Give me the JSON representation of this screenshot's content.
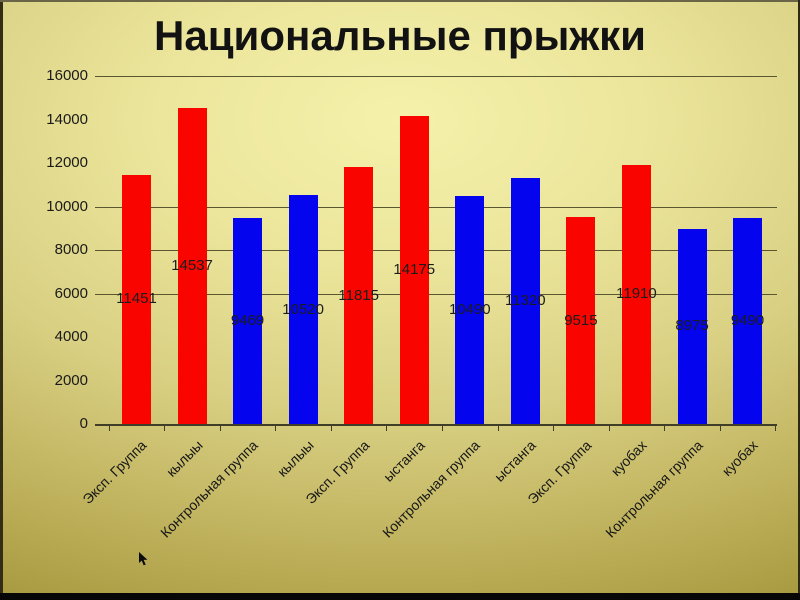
{
  "slide": {
    "title": "Национальные прыжки"
  },
  "colors": {
    "bar_red": "#fa0400",
    "bar_blue": "#0404ef",
    "background_center": "#f5f1ab",
    "background_edge": "#a3953a",
    "grid": "#5a5630",
    "axis": "#413e27",
    "text": "#161616"
  },
  "chart_data": {
    "type": "bar",
    "title": "Национальные прыжки",
    "categories": [
      "Эксп. Группа",
      "кылыы",
      "Контрольная группа",
      "кылыы",
      "Эксп. Группа",
      "ыстанга",
      "Контрольная группа",
      "ыстанга",
      "Эксп. Группа",
      "куобах",
      "Контрольная группа",
      "куобах"
    ],
    "values": [
      11451,
      14537,
      9469,
      10520,
      11815,
      14175,
      10490,
      11320,
      9515,
      11910,
      8975,
      9490
    ],
    "bar_colors": [
      "#fa0400",
      "#fa0400",
      "#0404ef",
      "#0404ef",
      "#fa0400",
      "#fa0400",
      "#0404ef",
      "#0404ef",
      "#fa0400",
      "#fa0400",
      "#0404ef",
      "#0404ef"
    ],
    "xlabel": "",
    "ylabel": "",
    "ylim": [
      0,
      16000
    ],
    "yticks": [
      0,
      2000,
      4000,
      6000,
      8000,
      10000,
      12000,
      14000,
      16000
    ],
    "visible_gridlines": [
      6000,
      8000,
      10000,
      16000
    ],
    "data_labels": true,
    "legend": "none",
    "x_label_rotation_deg": -45
  }
}
